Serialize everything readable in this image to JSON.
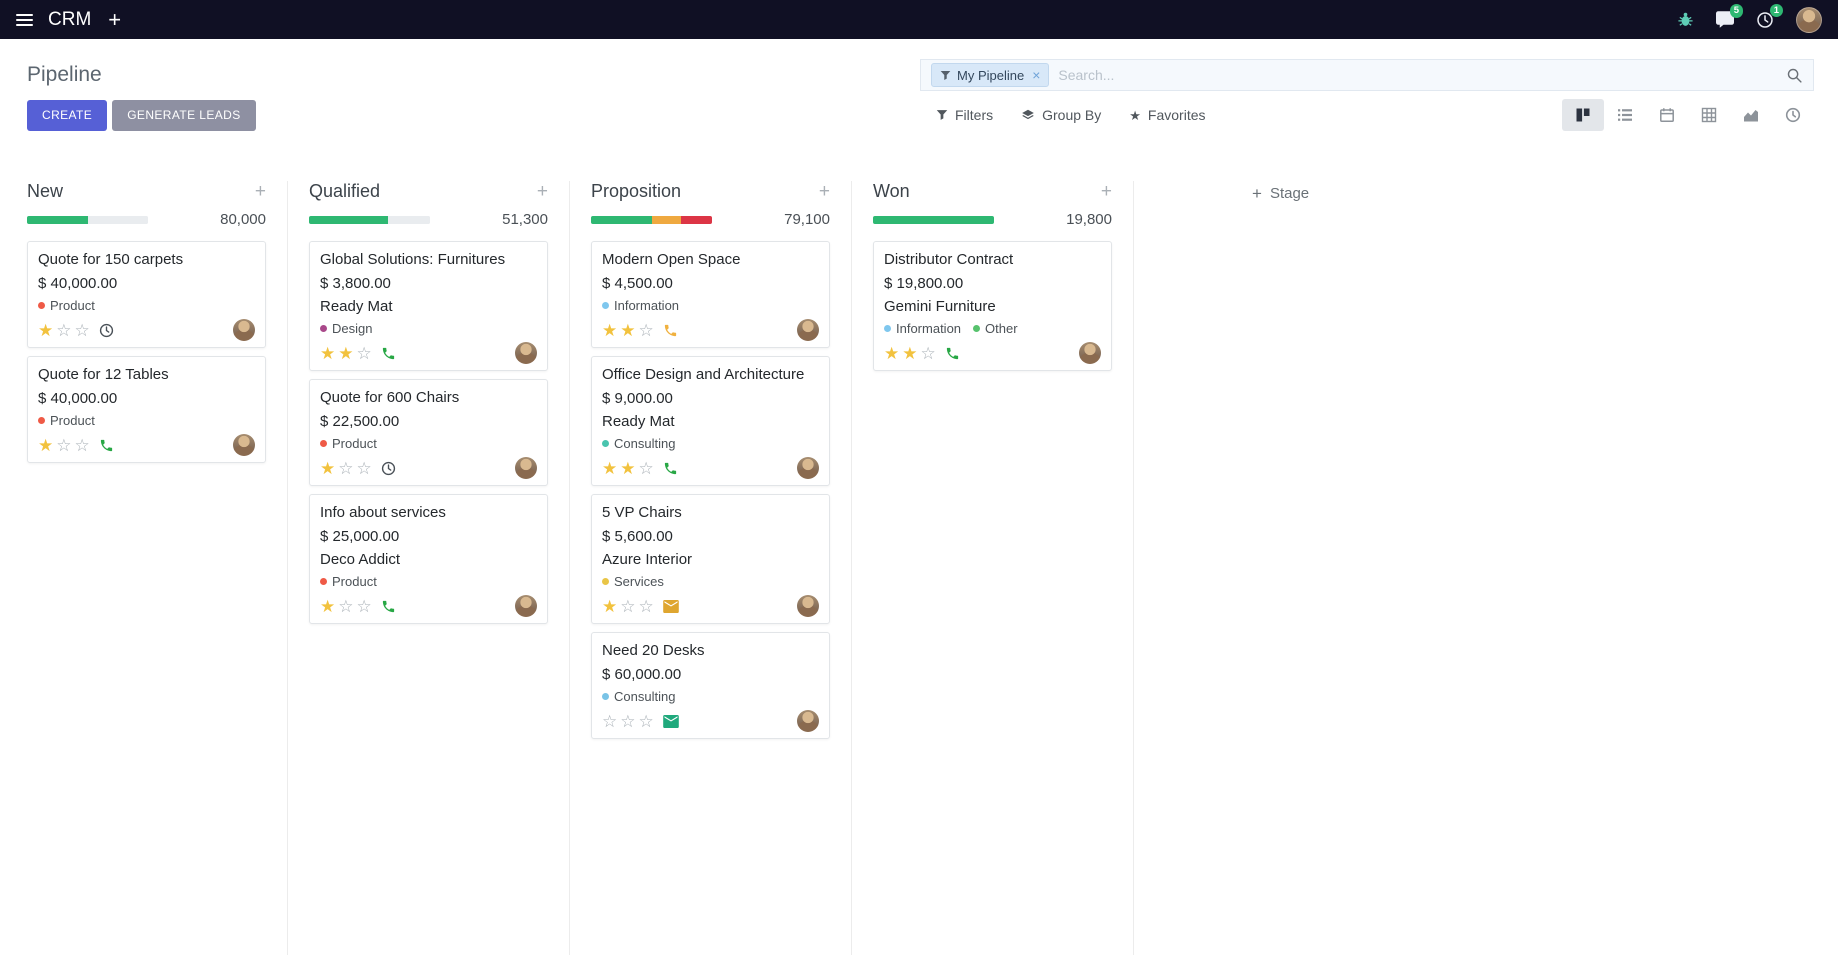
{
  "ui": {
    "plus": "+",
    "close": "×"
  },
  "navbar": {
    "brand": "CRM",
    "message_badge": "5",
    "activity_badge": "1"
  },
  "control_panel": {
    "title": "Pipeline",
    "buttons": {
      "create": "CREATE",
      "generate_leads": "GENERATE LEADS"
    },
    "search": {
      "facet_label": "My Pipeline",
      "placeholder": "Search..."
    },
    "filter_bar": {
      "filters": "Filters",
      "group_by": "Group By",
      "favorites": "Favorites"
    }
  },
  "kanban": {
    "add_stage_label": "Stage",
    "columns": [
      {
        "name": "New",
        "total": "80,000",
        "progress": [
          {
            "color": "#2eb872",
            "pct": 50
          },
          {
            "color": "#e9ecef",
            "pct": 50
          }
        ],
        "cards": [
          {
            "title": "Quote for 150 carpets",
            "amount": "$ 40,000.00",
            "partner": "",
            "tags": [
              {
                "label": "Product",
                "color": "#ef5a46"
              }
            ],
            "stars": 1,
            "action": {
              "icon": "clock",
              "color": "#495057"
            }
          },
          {
            "title": "Quote for 12 Tables",
            "amount": "$ 40,000.00",
            "partner": "",
            "tags": [
              {
                "label": "Product",
                "color": "#ef5a46"
              }
            ],
            "stars": 1,
            "action": {
              "icon": "phone",
              "color": "#28a745"
            }
          }
        ]
      },
      {
        "name": "Qualified",
        "total": "51,300",
        "progress": [
          {
            "color": "#2eb872",
            "pct": 65
          },
          {
            "color": "#e9ecef",
            "pct": 35
          }
        ],
        "cards": [
          {
            "title": "Global Solutions: Furnitures",
            "amount": "$ 3,800.00",
            "partner": "Ready Mat",
            "tags": [
              {
                "label": "Design",
                "color": "#a9488a"
              }
            ],
            "stars": 2,
            "action": {
              "icon": "phone",
              "color": "#28a745"
            }
          },
          {
            "title": "Quote for 600 Chairs",
            "amount": "$ 22,500.00",
            "partner": "",
            "tags": [
              {
                "label": "Product",
                "color": "#ef5a46"
              }
            ],
            "stars": 1,
            "action": {
              "icon": "clock",
              "color": "#495057"
            }
          },
          {
            "title": "Info about services",
            "amount": "$ 25,000.00",
            "partner": "Deco Addict",
            "tags": [
              {
                "label": "Product",
                "color": "#ef5a46"
              }
            ],
            "stars": 1,
            "action": {
              "icon": "phone",
              "color": "#28a745"
            }
          }
        ]
      },
      {
        "name": "Proposition",
        "total": "79,100",
        "progress": [
          {
            "color": "#2eb872",
            "pct": 50
          },
          {
            "color": "#efa940",
            "pct": 24
          },
          {
            "color": "#dc3545",
            "pct": 26
          }
        ],
        "cards": [
          {
            "title": "Modern Open Space",
            "amount": "$ 4,500.00",
            "partner": "",
            "tags": [
              {
                "label": "Information",
                "color": "#7fc7ee"
              }
            ],
            "stars": 2,
            "action": {
              "icon": "phone",
              "color": "#f0b13f"
            }
          },
          {
            "title": "Office Design and Architecture",
            "amount": "$ 9,000.00",
            "partner": "Ready Mat",
            "tags": [
              {
                "label": "Consulting",
                "color": "#49c4ae"
              }
            ],
            "stars": 2,
            "action": {
              "icon": "phone",
              "color": "#28a745"
            }
          },
          {
            "title": "5 VP Chairs",
            "amount": "$ 5,600.00",
            "partner": "Azure Interior",
            "tags": [
              {
                "label": "Services",
                "color": "#e9c546"
              }
            ],
            "stars": 1,
            "action": {
              "icon": "envelope",
              "color": "#dfa630"
            }
          },
          {
            "title": "Need 20 Desks",
            "amount": "$ 60,000.00",
            "partner": "",
            "tags": [
              {
                "label": "Consulting",
                "color": "#79c3e6"
              }
            ],
            "stars": 0,
            "action": {
              "icon": "envelope",
              "color": "#1fa97c"
            }
          }
        ]
      },
      {
        "name": "Won",
        "total": "19,800",
        "progress": [
          {
            "color": "#2eb872",
            "pct": 100
          }
        ],
        "cards": [
          {
            "title": "Distributor Contract",
            "amount": "$ 19,800.00",
            "partner": "Gemini Furniture",
            "tags": [
              {
                "label": "Information",
                "color": "#7fc7ee"
              },
              {
                "label": "Other",
                "color": "#57c26d"
              }
            ],
            "stars": 2,
            "action": {
              "icon": "phone",
              "color": "#28a745"
            }
          }
        ]
      }
    ]
  }
}
